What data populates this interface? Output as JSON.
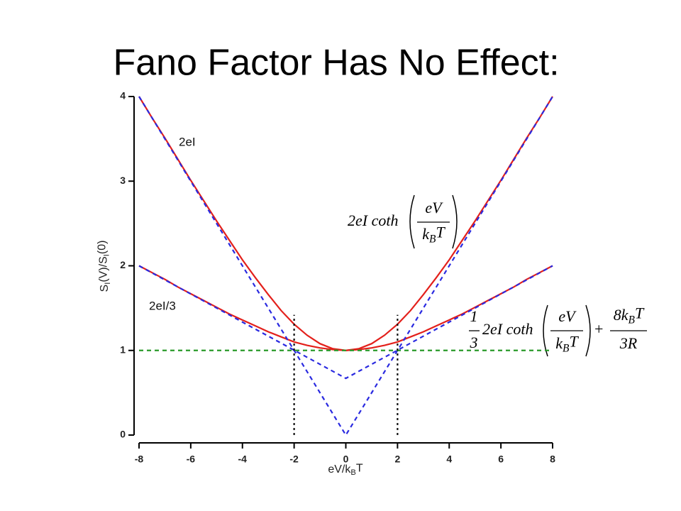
{
  "chart_data": {
    "type": "line",
    "title": "Fano Factor Has No Effect:",
    "xlabel": [
      "eV/k",
      "B",
      "T"
    ],
    "ylabel": [
      "S",
      "I",
      "(V)/S",
      "I",
      "(0)"
    ],
    "xlim": [
      -8,
      8
    ],
    "ylim": [
      0,
      4
    ],
    "xticks": [
      -8,
      -6,
      -4,
      -2,
      0,
      2,
      4,
      6,
      8
    ],
    "yticks": [
      0,
      1,
      2,
      3,
      4
    ],
    "series": [
      {
        "color": "#e3201b",
        "dash": "none",
        "x": [
          -8,
          -7.5,
          -7,
          -6.5,
          -6,
          -5.5,
          -5,
          -4.5,
          -4,
          -3.5,
          -3,
          -2.5,
          -2,
          -1.5,
          -1,
          -0.5,
          0,
          0.5,
          1,
          1.5,
          2,
          2.5,
          3,
          3.5,
          4,
          4.5,
          5,
          5.5,
          6,
          6.5,
          7,
          7.5,
          8
        ],
        "values": [
          4.0,
          3.75,
          3.51,
          3.26,
          3.01,
          2.77,
          2.53,
          2.3,
          2.07,
          1.86,
          1.66,
          1.47,
          1.31,
          1.18,
          1.08,
          1.02,
          1,
          1.02,
          1.08,
          1.18,
          1.31,
          1.47,
          1.66,
          1.86,
          2.07,
          2.3,
          2.53,
          2.77,
          3.01,
          3.26,
          3.51,
          3.75,
          4.0
        ]
      },
      {
        "color": "#e3201b",
        "dash": "none",
        "x": [
          -8,
          -7.5,
          -7,
          -6.5,
          -6,
          -5.5,
          -5,
          -4.5,
          -4,
          -3.5,
          -3,
          -2.5,
          -2,
          -1.5,
          -1,
          -0.5,
          0,
          0.5,
          1,
          1.5,
          2,
          2.5,
          3,
          3.5,
          4,
          4.5,
          5,
          5.5,
          6,
          6.5,
          7,
          7.5,
          8
        ],
        "values": [
          2.0,
          1.92,
          1.84,
          1.75,
          1.67,
          1.59,
          1.51,
          1.43,
          1.36,
          1.29,
          1.22,
          1.16,
          1.1,
          1.06,
          1.03,
          1.01,
          1,
          1.01,
          1.03,
          1.06,
          1.1,
          1.16,
          1.22,
          1.29,
          1.36,
          1.43,
          1.51,
          1.59,
          1.67,
          1.75,
          1.84,
          1.92,
          2.0
        ]
      },
      {
        "color": "#2a2ae0",
        "dash": "6 5",
        "x": [
          -8,
          0,
          8
        ],
        "values": [
          4,
          0,
          4
        ]
      },
      {
        "color": "#2a2ae0",
        "dash": "6 5",
        "x": [
          -8,
          0,
          8
        ],
        "values": [
          2,
          0.67,
          2
        ]
      },
      {
        "color": "#2a9a2a",
        "dash": "6 5",
        "x": [
          -8,
          8
        ],
        "values": [
          1,
          1
        ]
      },
      {
        "color": "#111111",
        "dash": "3 4",
        "x": [
          -2,
          -2
        ],
        "values": [
          0,
          1.42
        ]
      },
      {
        "color": "#111111",
        "dash": "3 4",
        "x": [
          2,
          2
        ],
        "values": [
          0,
          1.42
        ]
      }
    ],
    "annotations": {
      "label_full": "2eI",
      "label_third": "2eI/3",
      "formula_full": {
        "lead": "2eI coth",
        "num": "eV",
        "den": [
          "k",
          "B",
          "T"
        ]
      },
      "formula_third": {
        "pre_num": "1",
        "pre_den": "3",
        "lead": "2eI coth",
        "num": "eV",
        "den": [
          "k",
          "B",
          "T"
        ],
        "plus": "+",
        "num2": [
          "8k",
          "B",
          "T"
        ],
        "den2": "3R"
      }
    }
  }
}
